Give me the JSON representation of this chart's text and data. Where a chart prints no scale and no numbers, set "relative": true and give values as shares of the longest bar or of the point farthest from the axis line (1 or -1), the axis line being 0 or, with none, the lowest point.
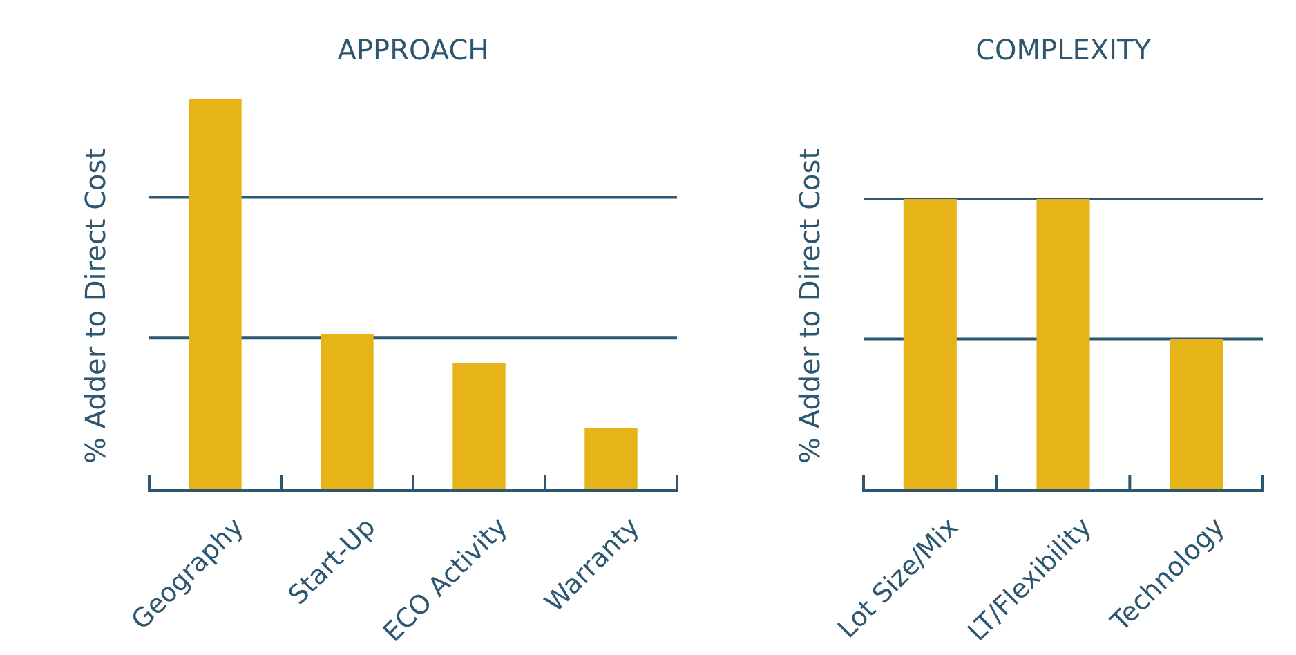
{
  "chart_data": [
    {
      "type": "bar",
      "title": "APPROACH",
      "ylabel": "% Adder to Direct Cost",
      "relative": true,
      "categories": [
        "Geography",
        "Start-Up",
        "ECO Activity",
        "Warranty"
      ],
      "values": [
        1,
        0.4,
        0.325,
        0.16
      ],
      "color": "#e6b419",
      "ref_lines": [
        {
          "axis": "y",
          "value": 0.39,
          "color": "#2d5670"
        },
        {
          "axis": "y",
          "value": 0.75,
          "color": "#2d5670"
        }
      ]
    },
    {
      "type": "bar",
      "title": "COMPLEXITY",
      "ylabel": "% Adder to Direct Cost",
      "relative": true,
      "categories": [
        "Lot Size/Mix",
        "LT/Flexibility",
        "Technology"
      ],
      "values": [
        1,
        1,
        0.52
      ],
      "color": "#e6b419",
      "ref_lines": [
        {
          "axis": "y",
          "value": 0.52,
          "color": "#2d5670"
        },
        {
          "axis": "y",
          "value": 1,
          "color": "#2d5670"
        }
      ]
    }
  ]
}
